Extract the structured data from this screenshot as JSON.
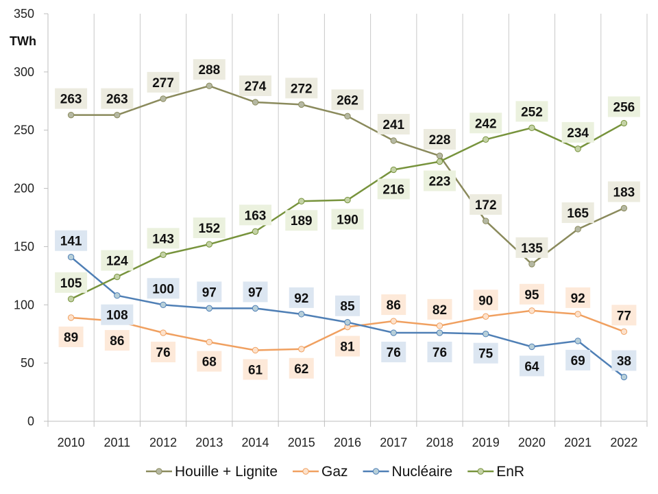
{
  "chart_data": {
    "type": "line",
    "title": "",
    "xlabel": "",
    "ylabel": "TWh",
    "ylim": [
      0,
      350
    ],
    "yticks": [
      0,
      50,
      100,
      150,
      200,
      250,
      300,
      350
    ],
    "grid": "vertical",
    "legend_position": "bottom",
    "categories": [
      "2010",
      "2011",
      "2012",
      "2013",
      "2014",
      "2015",
      "2016",
      "2017",
      "2018",
      "2019",
      "2020",
      "2021",
      "2022"
    ],
    "series": [
      {
        "name": "Houille + Lignite",
        "color": "#8a8a5c",
        "marker_fill": "#b5b8a2",
        "label_bg": "#ecebdf",
        "values": [
          263,
          263,
          277,
          288,
          274,
          272,
          262,
          241,
          228,
          172,
          135,
          165,
          183
        ]
      },
      {
        "name": "Gaz",
        "color": "#f0a060",
        "marker_fill": "#fde2cc",
        "label_bg": "#fde9d9",
        "values": [
          89,
          86,
          76,
          68,
          61,
          62,
          81,
          86,
          82,
          90,
          95,
          92,
          77
        ]
      },
      {
        "name": "Nucléaire",
        "color": "#4f7fb5",
        "marker_fill": "#b7cfd9",
        "label_bg": "#dce6f1",
        "values": [
          141,
          108,
          100,
          97,
          97,
          92,
          85,
          76,
          76,
          75,
          64,
          69,
          38
        ]
      },
      {
        "name": "EnR",
        "color": "#77933c",
        "marker_fill": "#c4d2a6",
        "label_bg": "#ebf1de",
        "values": [
          105,
          124,
          143,
          152,
          163,
          189,
          190,
          216,
          223,
          242,
          252,
          234,
          256
        ]
      }
    ]
  }
}
